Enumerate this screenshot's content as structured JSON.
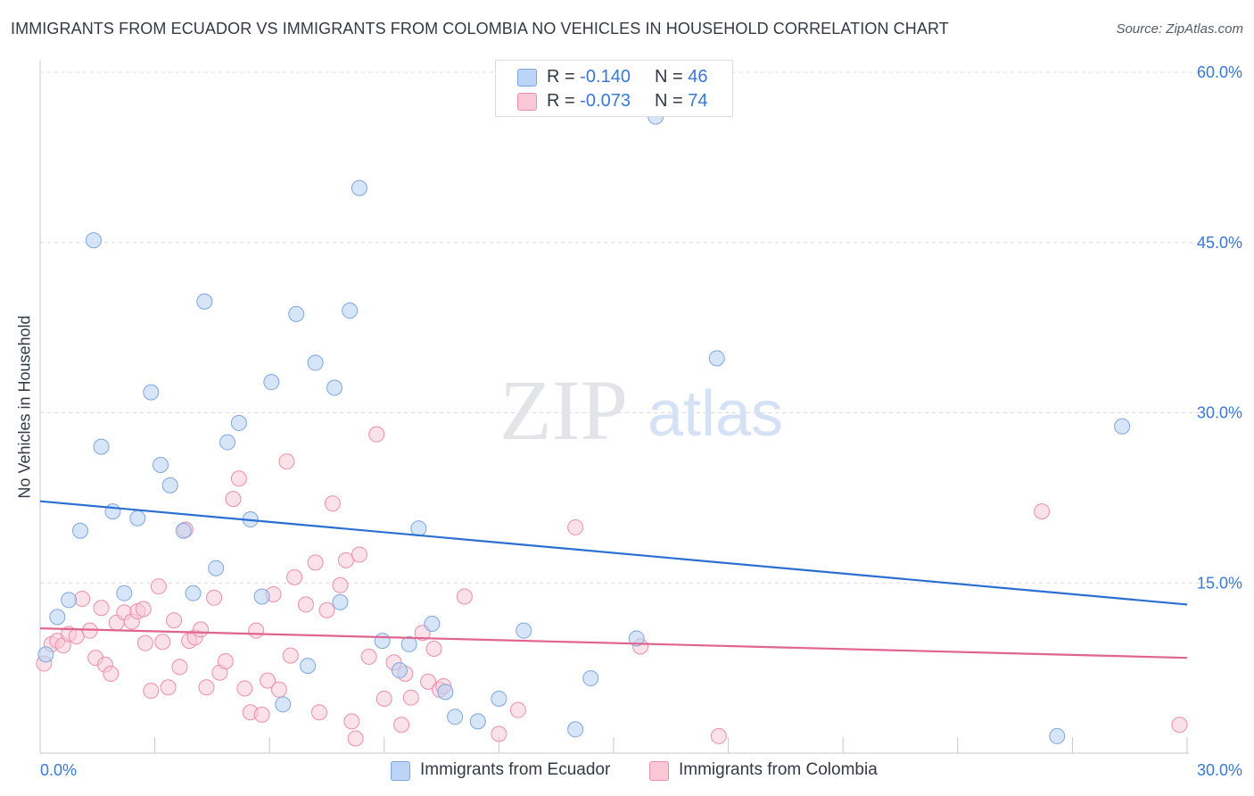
{
  "header": {
    "title": "IMMIGRANTS FROM ECUADOR VS IMMIGRANTS FROM COLOMBIA NO VEHICLES IN HOUSEHOLD CORRELATION CHART",
    "source": "Source: ZipAtlas.com"
  },
  "legend_top": {
    "rows": [
      {
        "r_label": "R =",
        "r_value": "-0.140",
        "n_label": "N =",
        "n_value": "46"
      },
      {
        "r_label": "R =",
        "r_value": "-0.073",
        "n_label": "N =",
        "n_value": "74"
      }
    ]
  },
  "watermark": {
    "part1": "ZIP",
    "part2": "atlas"
  },
  "colors": {
    "ecuador_fill": "#bcd4f5",
    "ecuador_stroke": "#7fa6df",
    "ecuador_line": "#2a6fd1",
    "colombia_fill": "#f8c8d6",
    "colombia_stroke": "#eb8fab",
    "colombia_line": "#e0648f",
    "tick_label": "#3a78d8",
    "grid": "#d9dde3"
  },
  "chart_data": {
    "type": "scatter",
    "title": "IMMIGRANTS FROM ECUADOR VS IMMIGRANTS FROM COLOMBIA NO VEHICLES IN HOUSEHOLD CORRELATION CHART",
    "xlabel": "",
    "ylabel": "No Vehicles in Household",
    "xlim": [
      0,
      30
    ],
    "ylim": [
      0,
      60
    ],
    "x_tick_labels": [
      "0.0%",
      "30.0%"
    ],
    "y_tick_labels": [
      "15.0%",
      "30.0%",
      "45.0%",
      "60.0%"
    ],
    "y_ticks": [
      15,
      30,
      45,
      60
    ],
    "grid": true,
    "legend_position": "bottom",
    "series": [
      {
        "name": "Immigrants from Ecuador",
        "R": -0.14,
        "N": 46,
        "trend": {
          "x": [
            0,
            30
          ],
          "y": [
            22.2,
            13.1
          ]
        },
        "points": [
          {
            "x": 0.15,
            "y": 8.7
          },
          {
            "x": 0.45,
            "y": 12.0
          },
          {
            "x": 0.75,
            "y": 13.5
          },
          {
            "x": 1.05,
            "y": 19.6
          },
          {
            "x": 1.4,
            "y": 45.2
          },
          {
            "x": 1.6,
            "y": 27.0
          },
          {
            "x": 1.9,
            "y": 21.3
          },
          {
            "x": 2.2,
            "y": 14.1
          },
          {
            "x": 2.55,
            "y": 20.7
          },
          {
            "x": 2.9,
            "y": 31.8
          },
          {
            "x": 3.15,
            "y": 25.4
          },
          {
            "x": 3.4,
            "y": 23.6
          },
          {
            "x": 3.75,
            "y": 19.6
          },
          {
            "x": 4.0,
            "y": 14.1
          },
          {
            "x": 4.3,
            "y": 39.8
          },
          {
            "x": 4.6,
            "y": 16.3
          },
          {
            "x": 4.9,
            "y": 27.4
          },
          {
            "x": 5.2,
            "y": 29.1
          },
          {
            "x": 5.5,
            "y": 20.6
          },
          {
            "x": 5.8,
            "y": 13.8
          },
          {
            "x": 6.05,
            "y": 32.7
          },
          {
            "x": 6.35,
            "y": 4.3
          },
          {
            "x": 6.7,
            "y": 38.7
          },
          {
            "x": 7.0,
            "y": 7.7
          },
          {
            "x": 7.2,
            "y": 34.4
          },
          {
            "x": 7.7,
            "y": 32.2
          },
          {
            "x": 7.85,
            "y": 13.3
          },
          {
            "x": 8.1,
            "y": 39.0
          },
          {
            "x": 8.35,
            "y": 49.8
          },
          {
            "x": 8.95,
            "y": 9.9
          },
          {
            "x": 9.4,
            "y": 7.3
          },
          {
            "x": 9.65,
            "y": 9.6
          },
          {
            "x": 9.9,
            "y": 19.8
          },
          {
            "x": 10.25,
            "y": 11.4
          },
          {
            "x": 10.6,
            "y": 5.4
          },
          {
            "x": 10.85,
            "y": 3.2
          },
          {
            "x": 11.45,
            "y": 2.8
          },
          {
            "x": 12.0,
            "y": 4.8
          },
          {
            "x": 12.65,
            "y": 10.8
          },
          {
            "x": 14.0,
            "y": 2.1
          },
          {
            "x": 14.4,
            "y": 6.6
          },
          {
            "x": 15.6,
            "y": 10.1
          },
          {
            "x": 16.1,
            "y": 56.1
          },
          {
            "x": 17.7,
            "y": 34.8
          },
          {
            "x": 26.6,
            "y": 1.5
          },
          {
            "x": 28.3,
            "y": 28.8
          }
        ]
      },
      {
        "name": "Immigrants from Colombia",
        "R": -0.073,
        "N": 74,
        "trend": {
          "x": [
            0,
            30
          ],
          "y": [
            11.0,
            8.4
          ]
        },
        "points": [
          {
            "x": 0.1,
            "y": 7.9
          },
          {
            "x": 0.3,
            "y": 9.6
          },
          {
            "x": 0.45,
            "y": 9.9
          },
          {
            "x": 0.6,
            "y": 9.5
          },
          {
            "x": 0.75,
            "y": 10.5
          },
          {
            "x": 0.95,
            "y": 10.3
          },
          {
            "x": 1.1,
            "y": 13.6
          },
          {
            "x": 1.3,
            "y": 10.8
          },
          {
            "x": 1.45,
            "y": 8.4
          },
          {
            "x": 1.6,
            "y": 12.8
          },
          {
            "x": 1.7,
            "y": 7.8
          },
          {
            "x": 1.85,
            "y": 7.0
          },
          {
            "x": 2.0,
            "y": 11.5
          },
          {
            "x": 2.2,
            "y": 12.4
          },
          {
            "x": 2.4,
            "y": 11.6
          },
          {
            "x": 2.55,
            "y": 12.5
          },
          {
            "x": 2.7,
            "y": 12.7
          },
          {
            "x": 2.75,
            "y": 9.7
          },
          {
            "x": 2.9,
            "y": 5.5
          },
          {
            "x": 3.1,
            "y": 14.7
          },
          {
            "x": 3.2,
            "y": 9.8
          },
          {
            "x": 3.35,
            "y": 5.8
          },
          {
            "x": 3.5,
            "y": 11.7
          },
          {
            "x": 3.65,
            "y": 7.6
          },
          {
            "x": 3.8,
            "y": 19.7
          },
          {
            "x": 3.9,
            "y": 9.9
          },
          {
            "x": 4.05,
            "y": 10.2
          },
          {
            "x": 4.2,
            "y": 10.9
          },
          {
            "x": 4.35,
            "y": 5.8
          },
          {
            "x": 4.55,
            "y": 13.7
          },
          {
            "x": 4.7,
            "y": 7.1
          },
          {
            "x": 4.85,
            "y": 8.1
          },
          {
            "x": 5.05,
            "y": 22.4
          },
          {
            "x": 5.2,
            "y": 24.2
          },
          {
            "x": 5.35,
            "y": 5.7
          },
          {
            "x": 5.5,
            "y": 3.6
          },
          {
            "x": 5.65,
            "y": 10.8
          },
          {
            "x": 5.8,
            "y": 3.4
          },
          {
            "x": 5.95,
            "y": 6.4
          },
          {
            "x": 6.1,
            "y": 14.0
          },
          {
            "x": 6.25,
            "y": 5.6
          },
          {
            "x": 6.45,
            "y": 25.7
          },
          {
            "x": 6.55,
            "y": 8.6
          },
          {
            "x": 6.65,
            "y": 15.5
          },
          {
            "x": 6.95,
            "y": 13.1
          },
          {
            "x": 7.2,
            "y": 16.8
          },
          {
            "x": 7.3,
            "y": 3.6
          },
          {
            "x": 7.5,
            "y": 12.6
          },
          {
            "x": 7.65,
            "y": 22.0
          },
          {
            "x": 7.85,
            "y": 14.8
          },
          {
            "x": 8.0,
            "y": 17.0
          },
          {
            "x": 8.15,
            "y": 2.8
          },
          {
            "x": 8.25,
            "y": 1.3
          },
          {
            "x": 8.35,
            "y": 17.5
          },
          {
            "x": 8.6,
            "y": 8.5
          },
          {
            "x": 8.8,
            "y": 28.1
          },
          {
            "x": 9.0,
            "y": 4.8
          },
          {
            "x": 9.25,
            "y": 8.0
          },
          {
            "x": 9.45,
            "y": 2.5
          },
          {
            "x": 9.55,
            "y": 7.0
          },
          {
            "x": 9.7,
            "y": 4.9
          },
          {
            "x": 10.0,
            "y": 10.6
          },
          {
            "x": 10.15,
            "y": 6.3
          },
          {
            "x": 10.3,
            "y": 9.2
          },
          {
            "x": 10.45,
            "y": 5.6
          },
          {
            "x": 10.55,
            "y": 5.9
          },
          {
            "x": 11.1,
            "y": 13.8
          },
          {
            "x": 12.0,
            "y": 1.7
          },
          {
            "x": 12.5,
            "y": 3.8
          },
          {
            "x": 14.0,
            "y": 19.9
          },
          {
            "x": 15.7,
            "y": 9.4
          },
          {
            "x": 17.75,
            "y": 1.5
          },
          {
            "x": 26.2,
            "y": 21.3
          },
          {
            "x": 29.8,
            "y": 2.5
          }
        ]
      }
    ]
  }
}
